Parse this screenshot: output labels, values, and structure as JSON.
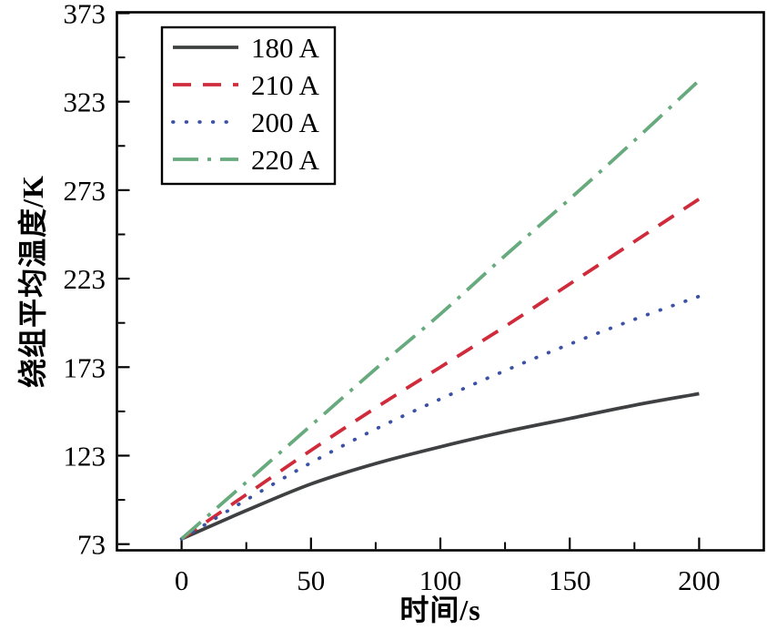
{
  "chart_data": {
    "type": "line",
    "title": "",
    "xlabel": "时间/s",
    "ylabel": "绕组平均温度/K",
    "xlim": [
      -25,
      225
    ],
    "ylim": [
      69.5,
      373.5
    ],
    "x_ticks_major": [
      0,
      50,
      100,
      150,
      200
    ],
    "x_ticks_minor": [
      25,
      75,
      125,
      175
    ],
    "y_ticks_major": [
      73,
      123,
      173,
      223,
      273,
      323,
      373
    ],
    "y_ticks_minor": [
      98,
      148,
      198,
      248,
      298,
      348
    ],
    "grid": false,
    "legend_position": "top-left",
    "x": [
      0,
      25,
      50,
      75,
      100,
      125,
      150,
      175,
      200
    ],
    "series": [
      {
        "name": "180 A",
        "style": "solid",
        "color": "#3f4041",
        "values": [
          76,
          92,
          107,
          118.5,
          128,
          136.5,
          144,
          151.5,
          158
        ]
      },
      {
        "name": "210 A",
        "style": "dashed",
        "color": "#d02b3b",
        "values": [
          76,
          101,
          126,
          150,
          173,
          196,
          220,
          244,
          268
        ]
      },
      {
        "name": "200 A",
        "style": "dotted",
        "color": "#3a51a5",
        "values": [
          76,
          98,
          119,
          138,
          155,
          171,
          186,
          200,
          213
        ]
      },
      {
        "name": "220 A",
        "style": "dashdot",
        "color": "#67aa7d",
        "values": [
          76,
          108,
          140,
          172,
          203,
          236,
          268,
          301,
          335
        ]
      }
    ],
    "axis_color": "#000000",
    "tick_label_color": "#000000"
  }
}
